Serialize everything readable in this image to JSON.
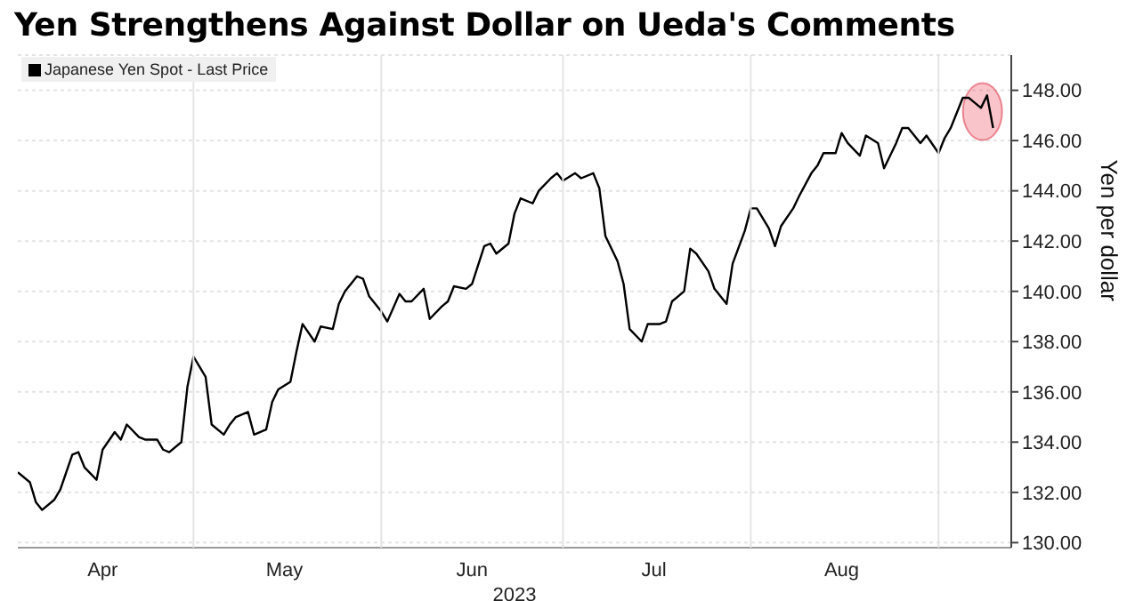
{
  "chart_data": {
    "type": "line",
    "title": "Yen Strengthens Against Dollar on Ueda's Comments",
    "xlabel": "2023",
    "ylabel": "Yen per dollar",
    "x": [
      "2023-04-02",
      "2023-04-04",
      "2023-04-05",
      "2023-04-06",
      "2023-04-08",
      "2023-04-09",
      "2023-04-11",
      "2023-04-12",
      "2023-04-13",
      "2023-04-15",
      "2023-04-16",
      "2023-04-18",
      "2023-04-19",
      "2023-04-20",
      "2023-04-22",
      "2023-04-23",
      "2023-04-25",
      "2023-04-26",
      "2023-04-27",
      "2023-04-29",
      "2023-04-30",
      "2023-05-01",
      "2023-05-03",
      "2023-05-04",
      "2023-05-06",
      "2023-05-07",
      "2023-05-08",
      "2023-05-10",
      "2023-05-11",
      "2023-05-13",
      "2023-05-14",
      "2023-05-15",
      "2023-05-17",
      "2023-05-18",
      "2023-05-19",
      "2023-05-21",
      "2023-05-22",
      "2023-05-24",
      "2023-05-25",
      "2023-05-26",
      "2023-05-28",
      "2023-05-29",
      "2023-05-30",
      "2023-06-01",
      "2023-06-02",
      "2023-06-04",
      "2023-06-05",
      "2023-06-06",
      "2023-06-08",
      "2023-06-09",
      "2023-06-11",
      "2023-06-12",
      "2023-06-13",
      "2023-06-15",
      "2023-06-16",
      "2023-06-18",
      "2023-06-19",
      "2023-06-20",
      "2023-06-22",
      "2023-06-23",
      "2023-06-24",
      "2023-06-26",
      "2023-06-27",
      "2023-06-29",
      "2023-06-30",
      "2023-07-01",
      "2023-07-03",
      "2023-07-04",
      "2023-07-06",
      "2023-07-07",
      "2023-07-08",
      "2023-07-10",
      "2023-07-11",
      "2023-07-12",
      "2023-07-14",
      "2023-07-15",
      "2023-07-17",
      "2023-07-18",
      "2023-07-19",
      "2023-07-21",
      "2023-07-22",
      "2023-07-23",
      "2023-07-25",
      "2023-07-26",
      "2023-07-28",
      "2023-07-29",
      "2023-07-31",
      "2023-08-01",
      "2023-08-02",
      "2023-08-04",
      "2023-08-05",
      "2023-08-06",
      "2023-08-08",
      "2023-08-09",
      "2023-08-11",
      "2023-08-12",
      "2023-08-13",
      "2023-08-15",
      "2023-08-16",
      "2023-08-17",
      "2023-08-19",
      "2023-08-20",
      "2023-08-22",
      "2023-08-23",
      "2023-08-25",
      "2023-08-26",
      "2023-08-27",
      "2023-08-29",
      "2023-08-30",
      "2023-09-01",
      "2023-09-02",
      "2023-09-03",
      "2023-09-05",
      "2023-09-06",
      "2023-09-08",
      "2023-09-09",
      "2023-09-10"
    ],
    "series": [
      {
        "name": "Japanese Yen Spot - Last Price",
        "color": "#000000",
        "values": [
          132.8,
          132.4,
          131.6,
          131.3,
          131.7,
          132.1,
          133.5,
          133.6,
          133.0,
          132.5,
          133.7,
          134.4,
          134.1,
          134.7,
          134.2,
          134.1,
          134.1,
          133.7,
          133.6,
          134.0,
          136.2,
          137.4,
          136.6,
          134.7,
          134.3,
          134.7,
          135.0,
          135.2,
          134.3,
          134.5,
          135.6,
          136.1,
          136.4,
          137.6,
          138.7,
          138.0,
          138.6,
          138.5,
          139.5,
          140.0,
          140.6,
          140.5,
          139.8,
          139.2,
          138.8,
          139.9,
          139.6,
          139.6,
          140.1,
          138.9,
          139.4,
          139.6,
          140.2,
          140.1,
          140.3,
          141.8,
          141.9,
          141.5,
          141.9,
          143.1,
          143.7,
          143.5,
          144.0,
          144.5,
          144.7,
          144.4,
          144.7,
          144.5,
          144.7,
          144.1,
          142.2,
          141.2,
          140.3,
          138.5,
          138.0,
          138.7,
          138.7,
          138.8,
          139.6,
          140.0,
          141.7,
          141.5,
          140.8,
          140.1,
          139.5,
          141.1,
          142.4,
          143.3,
          143.3,
          142.5,
          141.8,
          142.6,
          143.3,
          143.8,
          144.7,
          145.0,
          145.5,
          145.5,
          146.3,
          145.9,
          145.4,
          146.2,
          145.9,
          144.9,
          145.9,
          146.5,
          146.5,
          145.9,
          146.2,
          145.5,
          146.1,
          146.5,
          147.7,
          147.7,
          147.3,
          147.8,
          146.5
        ]
      }
    ],
    "xlim": [
      "2023-04-02",
      "2023-09-13"
    ],
    "xticks": [
      {
        "value": "2023-04-16",
        "label": "Apr"
      },
      {
        "value": "2023-05-01",
        "label": null
      },
      {
        "value": "2023-05-16",
        "label": "May"
      },
      {
        "value": "2023-06-01",
        "label": null
      },
      {
        "value": "2023-06-16",
        "label": "Jun"
      },
      {
        "value": "2023-07-01",
        "label": null
      },
      {
        "value": "2023-07-16",
        "label": "Jul"
      },
      {
        "value": "2023-08-01",
        "label": null
      },
      {
        "value": "2023-08-16",
        "label": "Aug"
      },
      {
        "value": "2023-09-01",
        "label": null
      }
    ],
    "ylim": [
      129.8,
      149.4
    ],
    "yticks": [
      {
        "value": 130,
        "label": "130.00"
      },
      {
        "value": 132,
        "label": "132.00"
      },
      {
        "value": 134,
        "label": "134.00"
      },
      {
        "value": 136,
        "label": "136.00"
      },
      {
        "value": 138,
        "label": "138.00"
      },
      {
        "value": 140,
        "label": "140.00"
      },
      {
        "value": 142,
        "label": "142.00"
      },
      {
        "value": 144,
        "label": "144.00"
      },
      {
        "value": 146,
        "label": "146.00"
      },
      {
        "value": 148,
        "label": "148.00"
      }
    ],
    "grid": true,
    "legend": "top left"
  }
}
